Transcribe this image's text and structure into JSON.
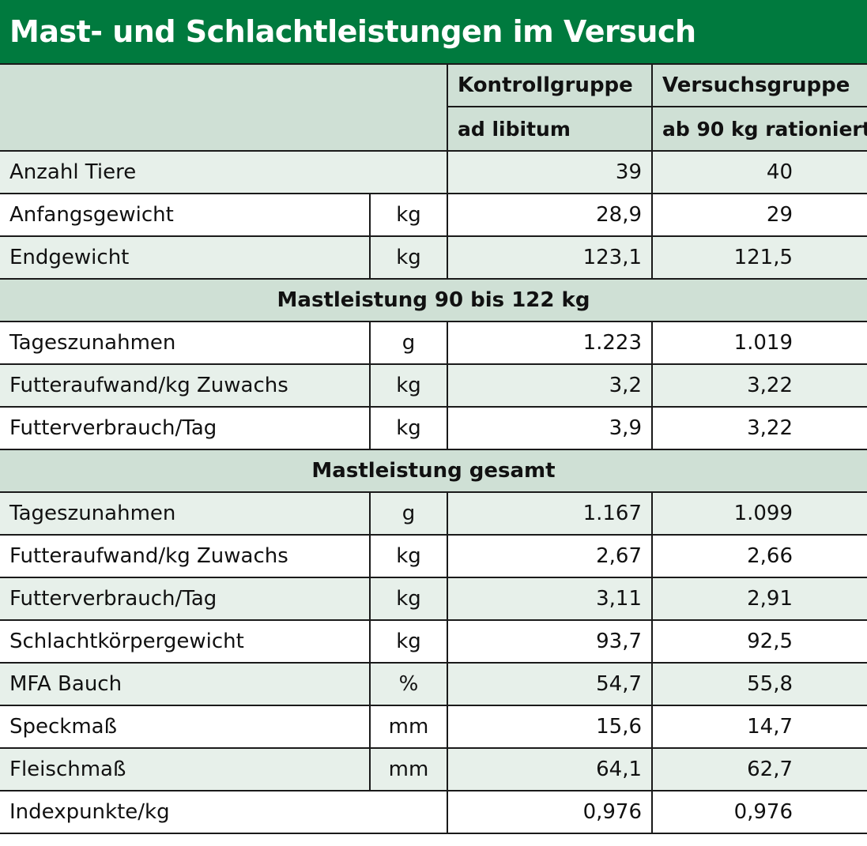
{
  "title": "Mast- und Schlachtleistungen im Versuch",
  "header": {
    "control_label": "Kontrollgruppe",
    "control_sub": "ad libitum",
    "test_label": "Versuchsgruppe",
    "test_sub": "ab 90 kg rationiert"
  },
  "top_rows": [
    {
      "label": "Anzahl Tiere",
      "unit": "",
      "control": "39",
      "test": "40"
    },
    {
      "label": "Anfangsgewicht",
      "unit": "kg",
      "control": "28,9",
      "test": "29"
    },
    {
      "label": "Endgewicht",
      "unit": "kg",
      "control": "123,1",
      "test": "121,5"
    }
  ],
  "section1": {
    "title": "Mastleistung 90 bis 122 kg",
    "rows": [
      {
        "label": "Tageszunahmen",
        "unit": "g",
        "control": "1.223",
        "test": "1.019"
      },
      {
        "label": "Futteraufwand/kg Zuwachs",
        "unit": "kg",
        "control": "3,2",
        "test": "3,22"
      },
      {
        "label": "Futterverbrauch/Tag",
        "unit": "kg",
        "control": "3,9",
        "test": "3,22"
      }
    ]
  },
  "section2": {
    "title": "Mastleistung gesamt",
    "rows": [
      {
        "label": "Tageszunahmen",
        "unit": "g",
        "control": "1.167",
        "test": "1.099"
      },
      {
        "label": "Futteraufwand/kg Zuwachs",
        "unit": "kg",
        "control": "2,67",
        "test": "2,66"
      },
      {
        "label": "Futterverbrauch/Tag",
        "unit": "kg",
        "control": "3,11",
        "test": "2,91"
      },
      {
        "label": "Schlachtkörpergewicht",
        "unit": "kg",
        "control": "93,7",
        "test": "92,5"
      },
      {
        "label": "MFA Bauch",
        "unit": "%",
        "control": "54,7",
        "test": "55,8"
      },
      {
        "label": "Speckmaß",
        "unit": "mm",
        "control": "15,6",
        "test": "14,7"
      },
      {
        "label": "Fleischmaß",
        "unit": "mm",
        "control": "64,1",
        "test": "62,7"
      },
      {
        "label": "Indexpunkte/kg",
        "unit": "",
        "control": "0,976",
        "test": "0,976"
      }
    ]
  },
  "colors": {
    "title_bar": "#007a3e",
    "header_fill": "#cfe0d5",
    "row_shade": "#e7f0ea"
  }
}
